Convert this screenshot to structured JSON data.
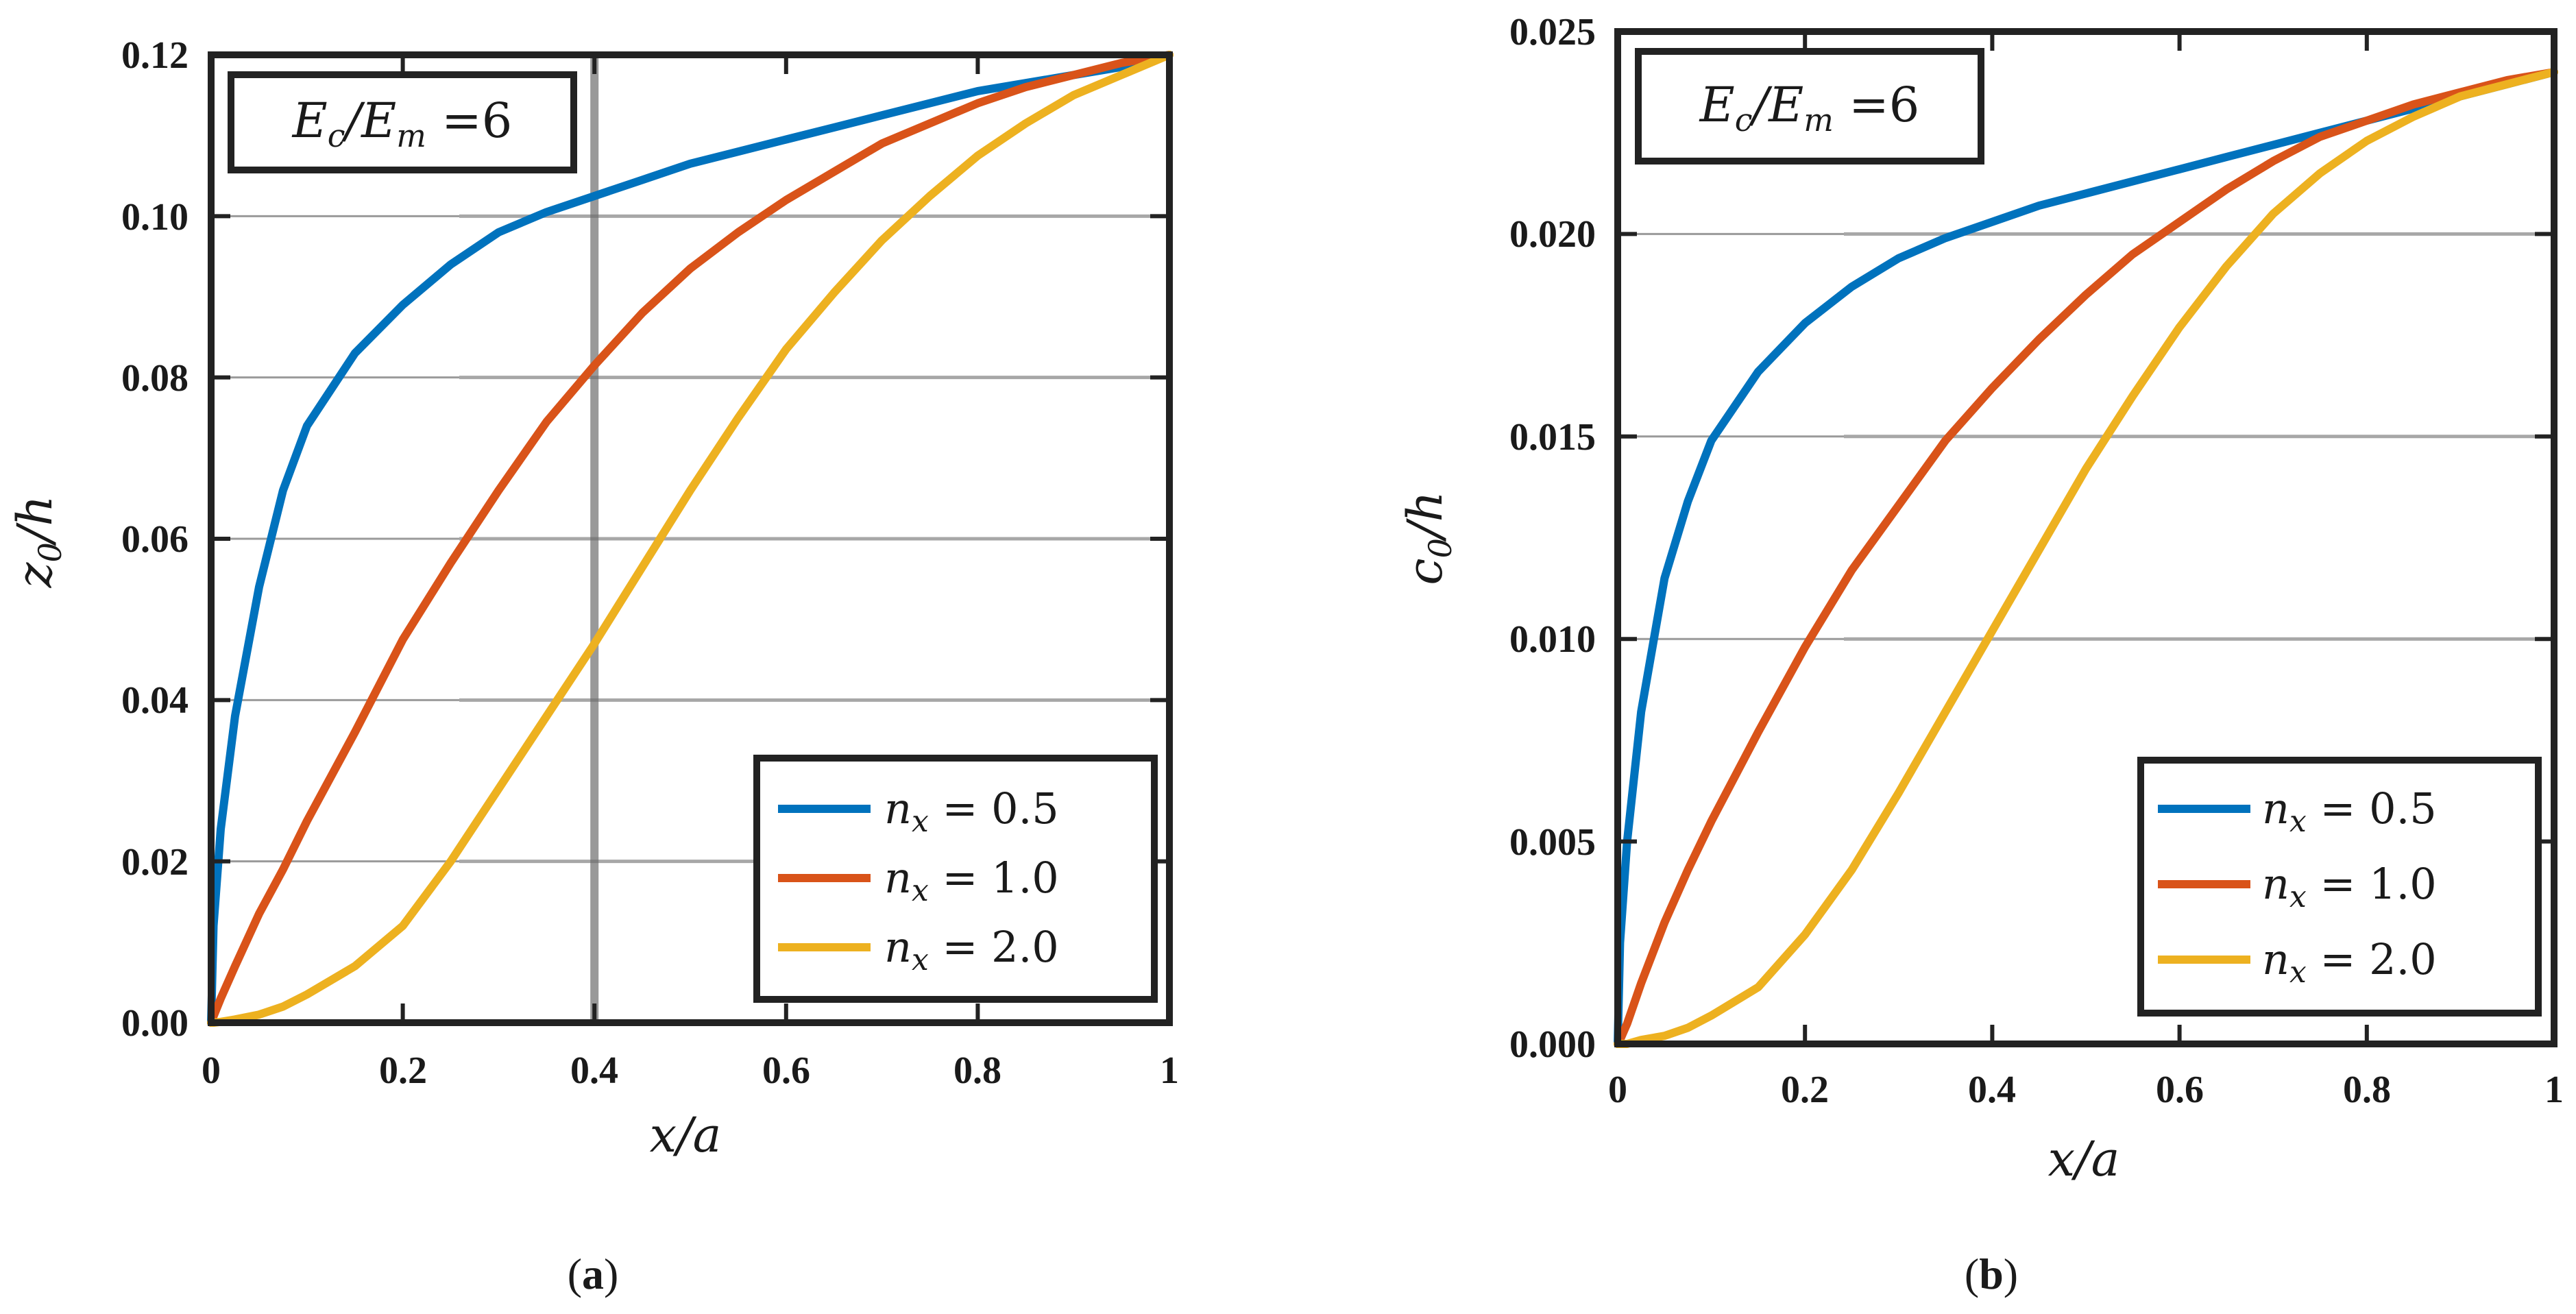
{
  "chart_data": [
    {
      "type": "line",
      "panel_label": "a",
      "annotation": "E_c/E_m =6",
      "xlabel": "x/a",
      "ylabel": "z_0/h",
      "xlim": [
        0,
        1
      ],
      "ylim": [
        0,
        0.12
      ],
      "xticks": [
        "0",
        "0.2",
        "0.4",
        "0.6",
        "0.8",
        "1"
      ],
      "yticks": [
        "0.00",
        "0.02",
        "0.04",
        "0.06",
        "0.08",
        "0.10",
        "0.12"
      ],
      "legend_position": "bottom-right",
      "x": [
        0,
        0.0025,
        0.01,
        0.025,
        0.05,
        0.075,
        0.1,
        0.15,
        0.2,
        0.25,
        0.3,
        0.35,
        0.4,
        0.45,
        0.5,
        0.55,
        0.6,
        0.65,
        0.7,
        0.75,
        0.8,
        0.85,
        0.9,
        0.95,
        1.0
      ],
      "series": [
        {
          "name": "n_x = 0.5",
          "color": "#0072BD",
          "values": [
            0,
            0.012,
            0.024,
            0.038,
            0.054,
            0.066,
            0.074,
            0.083,
            0.089,
            0.094,
            0.098,
            0.1005,
            0.1025,
            0.1045,
            0.1065,
            0.108,
            0.1095,
            0.111,
            0.1125,
            0.114,
            0.1155,
            0.1165,
            0.1175,
            0.1185,
            0.12
          ]
        },
        {
          "name": "n_x = 1.0",
          "color": "#D95319",
          "values": [
            0,
            0.0008,
            0.003,
            0.007,
            0.0135,
            0.019,
            0.025,
            0.036,
            0.0475,
            0.057,
            0.066,
            0.0745,
            0.0815,
            0.088,
            0.0935,
            0.098,
            0.102,
            0.1055,
            0.109,
            0.1115,
            0.114,
            0.116,
            0.1175,
            0.119,
            0.12
          ]
        },
        {
          "name": "n_x = 2.0",
          "color": "#EDB120",
          "values": [
            0,
            0,
            0.0001,
            0.0004,
            0.001,
            0.002,
            0.0035,
            0.007,
            0.012,
            0.02,
            0.029,
            0.038,
            0.047,
            0.0565,
            0.066,
            0.075,
            0.0835,
            0.0905,
            0.097,
            0.1025,
            0.1075,
            0.1115,
            0.115,
            0.1175,
            0.12
          ]
        }
      ]
    },
    {
      "type": "line",
      "panel_label": "b",
      "annotation": "E_c/E_m =6",
      "xlabel": "x/a",
      "ylabel": "c_0/h",
      "xlim": [
        0,
        1
      ],
      "ylim": [
        0,
        0.025
      ],
      "xticks": [
        "0",
        "0.2",
        "0.4",
        "0.6",
        "0.8",
        "1"
      ],
      "yticks": [
        "0.000",
        "0.005",
        "0.010",
        "0.015",
        "0.020",
        "0.025"
      ],
      "legend_position": "bottom-right",
      "x": [
        0,
        0.0025,
        0.01,
        0.025,
        0.05,
        0.075,
        0.1,
        0.15,
        0.2,
        0.25,
        0.3,
        0.35,
        0.4,
        0.45,
        0.5,
        0.55,
        0.6,
        0.65,
        0.7,
        0.75,
        0.8,
        0.85,
        0.9,
        0.95,
        1.0
      ],
      "series": [
        {
          "name": "n_x = 0.5",
          "color": "#0072BD",
          "values": [
            0,
            0.0025,
            0.005,
            0.0082,
            0.0115,
            0.0134,
            0.0149,
            0.0166,
            0.0178,
            0.0187,
            0.0194,
            0.0199,
            0.0203,
            0.0207,
            0.021,
            0.0213,
            0.0216,
            0.0219,
            0.0222,
            0.0225,
            0.0228,
            0.0231,
            0.0234,
            0.0237,
            0.024
          ]
        },
        {
          "name": "n_x = 1.0",
          "color": "#D95319",
          "values": [
            0,
            0.0001,
            0.0005,
            0.0015,
            0.003,
            0.0043,
            0.0055,
            0.0077,
            0.0098,
            0.0117,
            0.0133,
            0.0149,
            0.0162,
            0.0174,
            0.0185,
            0.0195,
            0.0203,
            0.0211,
            0.0218,
            0.0224,
            0.0228,
            0.0232,
            0.0235,
            0.0238,
            0.024
          ]
        },
        {
          "name": "n_x = 2.0",
          "color": "#EDB120",
          "values": [
            0,
            0,
            0,
            0.0001,
            0.0002,
            0.0004,
            0.0007,
            0.0014,
            0.0027,
            0.0043,
            0.0062,
            0.0082,
            0.0102,
            0.0122,
            0.0142,
            0.016,
            0.0177,
            0.0192,
            0.0205,
            0.0215,
            0.0223,
            0.0229,
            0.0234,
            0.0237,
            0.024
          ]
        }
      ]
    }
  ]
}
